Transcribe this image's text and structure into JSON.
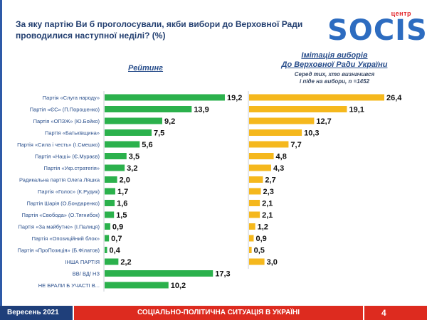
{
  "header": {
    "title": "За яку партію Ви б проголосували, якби вибори до Верховної Ради проводилися наступної неділі? (%)",
    "logo_small": "центр",
    "logo_big": "SOCIS"
  },
  "colors": {
    "left_bar": "#2bb14c",
    "right_bar": "#f5b81d",
    "label": "#2a4f8c",
    "value": "#111111",
    "axis": "#c9ced6"
  },
  "chart_data": [
    {
      "type": "bar",
      "orientation": "horizontal",
      "title": "Рейтинг",
      "categories": [
        "Партія «Слуга народу»",
        "Партія «ЄС» (П.Порошенко)",
        "Партія «ОПЗЖ» (Ю.Бойко)",
        "Партія «Батьківщина»",
        "Партія «Сила і честь» (І.Смешко)",
        "Партія «Наші» (Є.Мураєв)",
        "Партія «Укр.стратегія»",
        "Радикальна партія Олега Ляшка",
        "Партія «Голос» (К.Рудик)",
        "Партія Шарія (О.Бондаренко)",
        "Партія «Свобода» (О.Тягнибок)",
        "Партія «За майбутнє» (І.Палиця)",
        "Партія «Опозиційний блок»",
        "Партія «ПроПозиція» (Б.Філатов)",
        "ІНША ПАРТІЯ",
        "ВВ/ ВД/ НЗ",
        "НЕ БРАЛИ Б УЧАСТІ В..."
      ],
      "values": [
        19.2,
        13.9,
        9.2,
        7.5,
        5.6,
        3.5,
        3.2,
        2.0,
        1.7,
        1.6,
        1.5,
        0.9,
        0.7,
        0.4,
        2.2,
        17.3,
        10.2
      ],
      "value_labels": [
        "19,2",
        "13,9",
        "9,2",
        "7,5",
        "5,6",
        "3,5",
        "3,2",
        "2,0",
        "1,7",
        "1,6",
        "1,5",
        "0,9",
        "0,7",
        "0,4",
        "2,2",
        "17,3",
        "10,2"
      ],
      "xlim": [
        0,
        20
      ]
    },
    {
      "type": "bar",
      "orientation": "horizontal",
      "title_line1": "Імітація виборів",
      "title_line2": "До Верховної Ради України",
      "subtitle_line1": "Серед тих, хто визначився",
      "subtitle_line2": "і піде на вибори, n =1452",
      "categories": [
        "Партія «Слуга народу»",
        "Партія «ЄС» (П.Порошенко)",
        "Партія «ОПЗЖ» (Ю.Бойко)",
        "Партія «Батьківщина»",
        "Партія «Сила і честь» (І.Смешко)",
        "Партія «Наші» (Є.Мураєв)",
        "Партія «Укр.стратегія»",
        "Радикальна партія Олега Ляшка",
        "Партія «Голос» (К.Рудик)",
        "Партія Шарія (О.Бондаренко)",
        "Партія «Свобода» (О.Тягнибок)",
        "Партія «За майбутнє» (І.Палиця)",
        "Партія «Опозиційний блок»",
        "Партія «ПроПозиція» (Б.Філатов)",
        "ІНША ПАРТІЯ"
      ],
      "values": [
        26.4,
        19.1,
        12.7,
        10.3,
        7.7,
        4.8,
        4.3,
        2.7,
        2.3,
        2.1,
        2.1,
        1.2,
        0.9,
        0.5,
        3.0
      ],
      "value_labels": [
        "26,4",
        "19,1",
        "12,7",
        "10,3",
        "7,7",
        "4,8",
        "4,3",
        "2,7",
        "2,3",
        "2,1",
        "2,1",
        "1,2",
        "0,9",
        "0,5",
        "3,0"
      ],
      "xlim": [
        0,
        28
      ]
    }
  ],
  "footer": {
    "date": "Вересень 2021",
    "section": "СОЦІАЛЬНО-ПОЛІТИЧНА СИТУАЦІЯ В УКРАЇНІ",
    "page": "4"
  }
}
